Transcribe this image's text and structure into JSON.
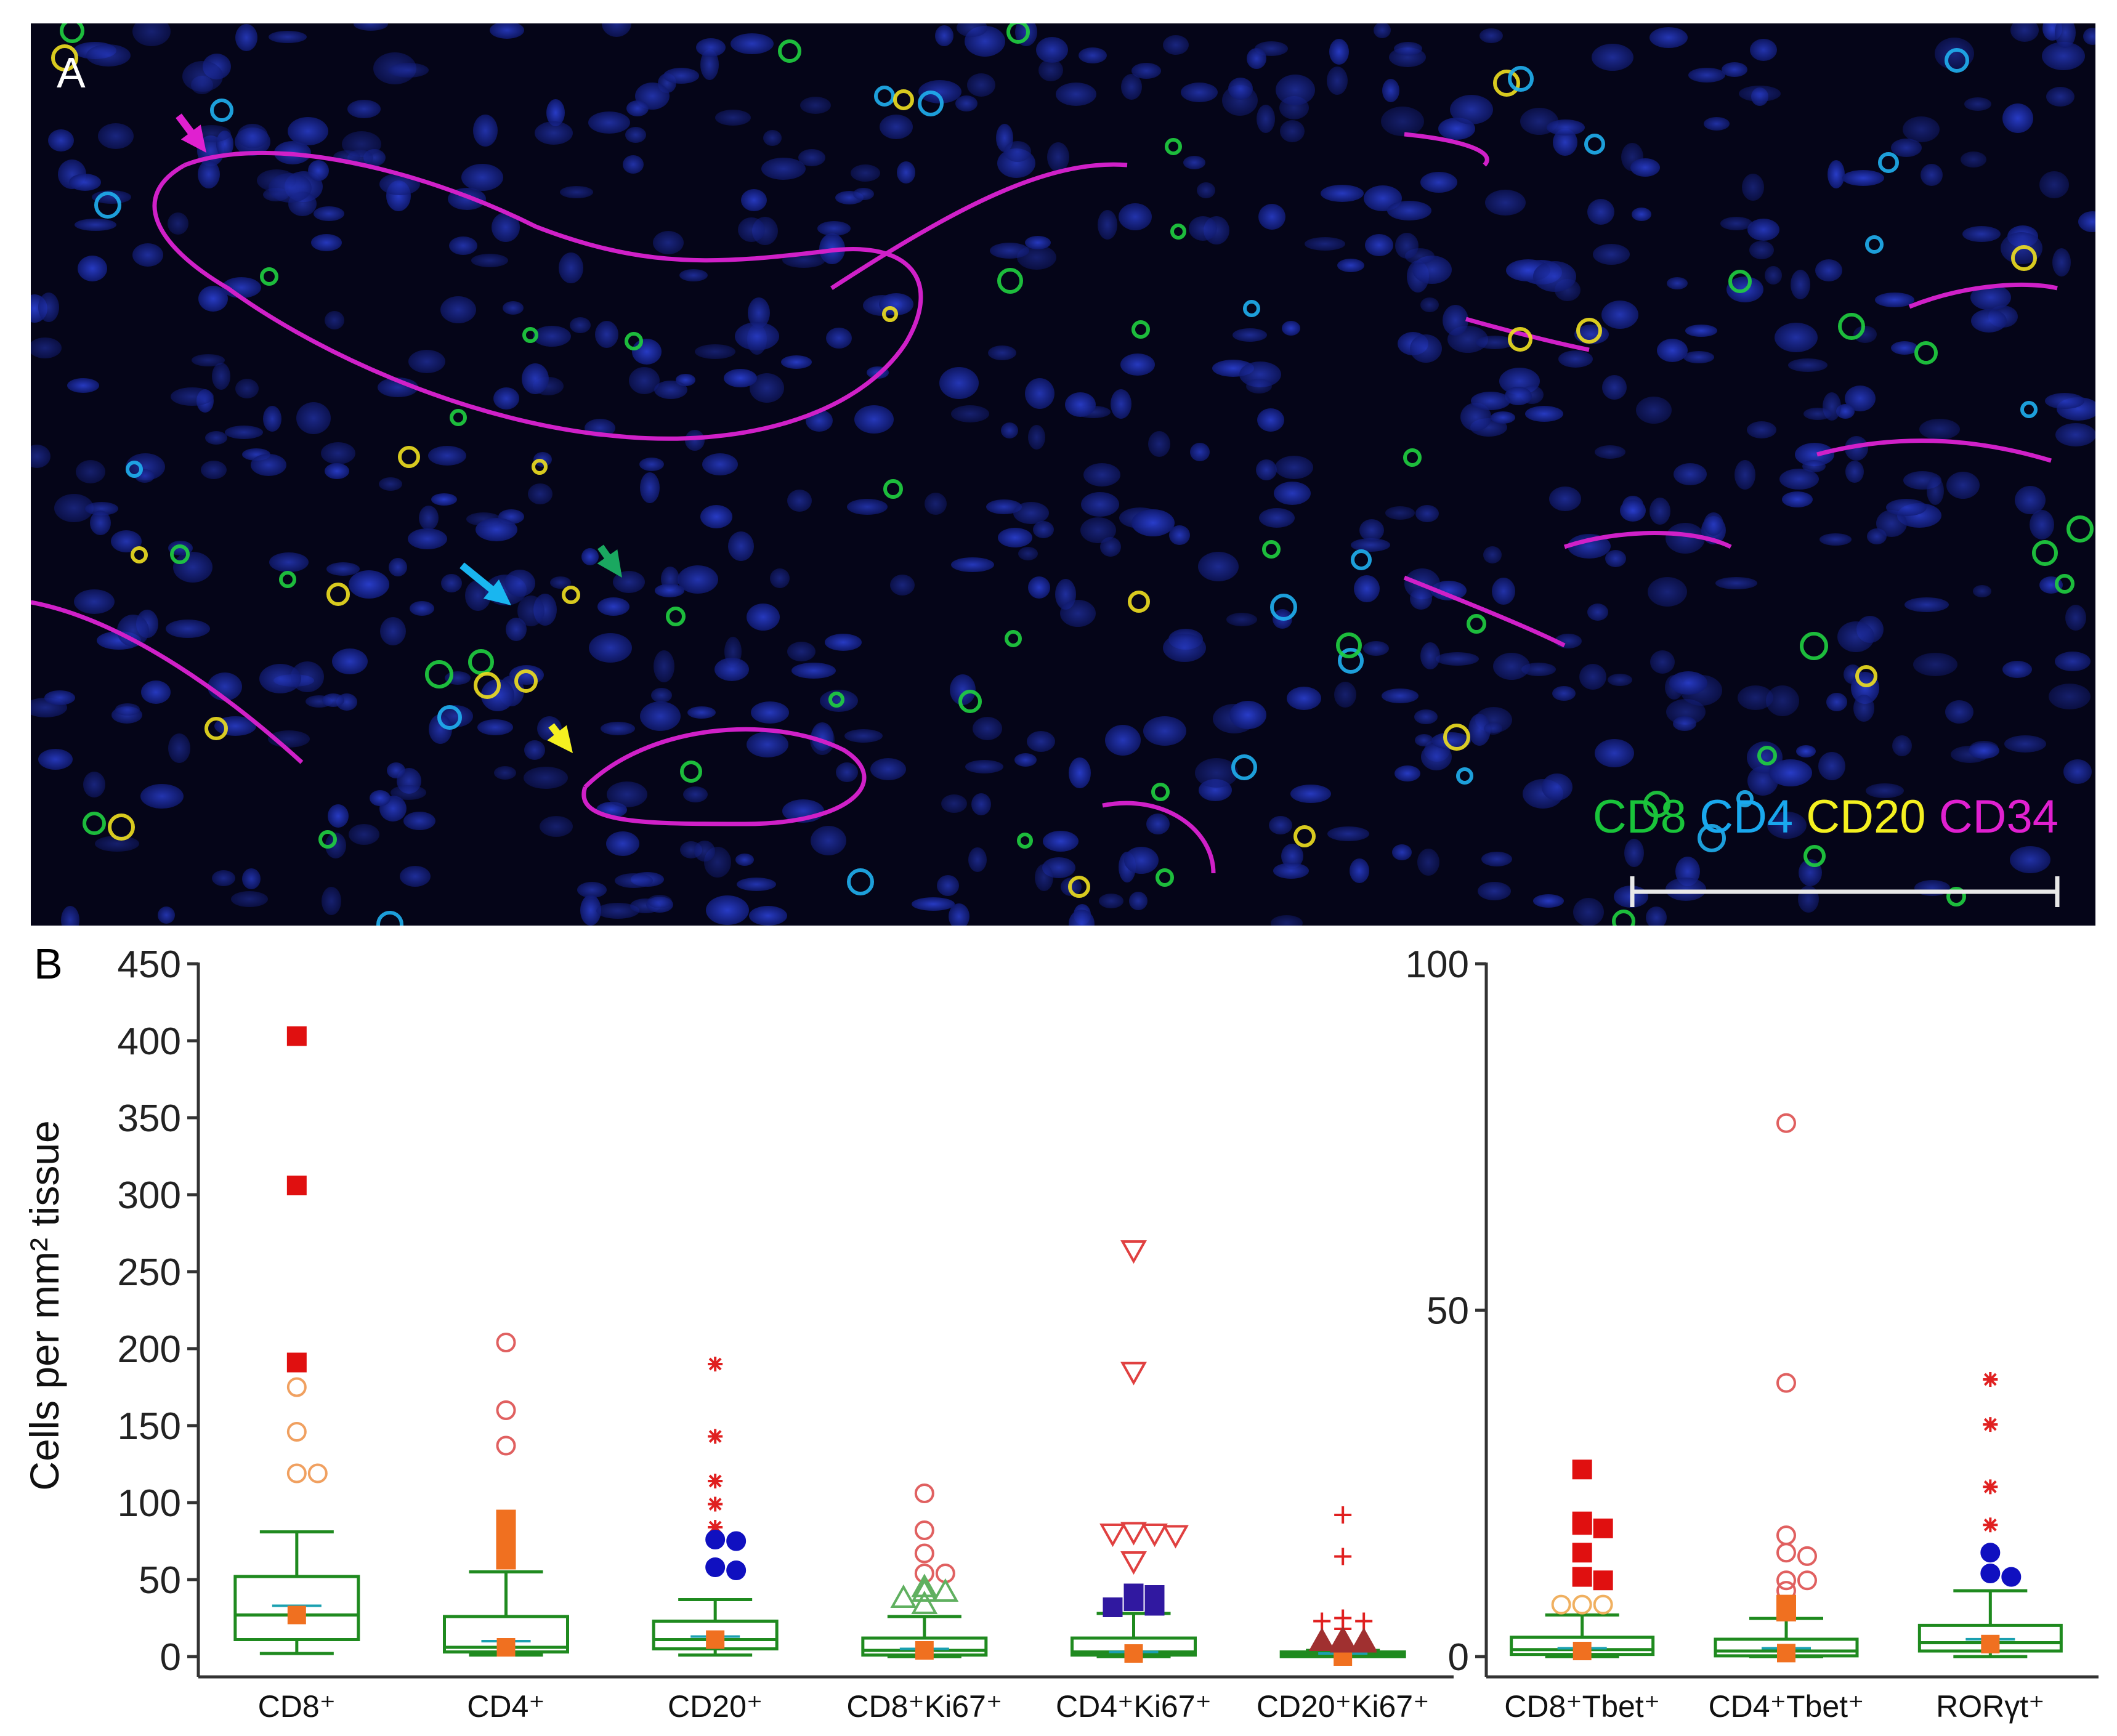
{
  "panel_a": {
    "letter": "A",
    "legend": [
      {
        "label": "CD8",
        "color": "#19c43a"
      },
      {
        "label": "CD4",
        "color": "#19a8ee"
      },
      {
        "label": "CD20",
        "color": "#f4f020"
      },
      {
        "label": "CD34",
        "color": "#e020d0"
      }
    ],
    "arrows": [
      {
        "name": "magenta-arrow",
        "color": "#e020d0"
      },
      {
        "name": "cyan-arrow",
        "color": "#19b6f0"
      },
      {
        "name": "green-arrow",
        "color": "#1aa860"
      },
      {
        "name": "yellow-arrow",
        "color": "#f4f020"
      }
    ]
  },
  "panel_b": {
    "letter": "B"
  },
  "chart_data": [
    {
      "type": "box",
      "ylabel": "Cells per mm² tissue",
      "ylim": [
        0,
        450
      ],
      "yticks": [
        0,
        50,
        100,
        150,
        200,
        250,
        300,
        350,
        400,
        450
      ],
      "categories": [
        "CD8⁺",
        "CD4⁺",
        "CD20⁺",
        "CD8⁺Ki67⁺",
        "CD4⁺Ki67⁺",
        "CD20⁺Ki67⁺"
      ],
      "box_color": "#1f8a1f",
      "boxes": [
        {
          "whisker_low": 2,
          "q1": 11,
          "median": 27,
          "q3": 52,
          "whisker_high": 81,
          "mean": 33,
          "marker_value": 27,
          "marker_color": "#f07020",
          "outliers": [
            {
              "value": 403,
              "shape": "square",
              "color": "#e01010",
              "filled": true
            },
            {
              "value": 306,
              "shape": "square",
              "color": "#e01010",
              "filled": true
            },
            {
              "value": 191,
              "shape": "square",
              "color": "#e01010",
              "filled": true
            },
            {
              "value": 175,
              "shape": "circle",
              "color": "#f0a060",
              "filled": false
            },
            {
              "value": 146,
              "shape": "circle",
              "color": "#f0a060",
              "filled": false
            },
            {
              "value": 119,
              "shape": "circle",
              "color": "#f0a060",
              "filled": false
            },
            {
              "value": 119,
              "shape": "circle",
              "color": "#f0a060",
              "filled": false
            }
          ]
        },
        {
          "whisker_low": 1,
          "q1": 3,
          "median": 6,
          "q3": 26,
          "whisker_high": 55,
          "mean": 10,
          "marker_value": 6,
          "marker_color": "#f07020",
          "outliers": [
            {
              "value": 204,
              "shape": "circle",
              "color": "#e06060",
              "filled": false
            },
            {
              "value": 160,
              "shape": "circle",
              "color": "#e06060",
              "filled": false
            },
            {
              "value": 137,
              "shape": "circle",
              "color": "#e06060",
              "filled": false
            },
            {
              "value": 89,
              "shape": "square",
              "color": "#f07020",
              "filled": true
            },
            {
              "value": 77,
              "shape": "square",
              "color": "#f07020",
              "filled": true
            },
            {
              "value": 72,
              "shape": "square",
              "color": "#f07020",
              "filled": true
            },
            {
              "value": 63,
              "shape": "square",
              "color": "#f07020",
              "filled": true
            }
          ]
        },
        {
          "whisker_low": 1,
          "q1": 5,
          "median": 11,
          "q3": 23,
          "whisker_high": 37,
          "mean": 13,
          "marker_value": 11,
          "marker_color": "#f07020",
          "outliers": [
            {
              "value": 190,
              "shape": "star",
              "color": "#e02020",
              "filled": true
            },
            {
              "value": 143,
              "shape": "star",
              "color": "#e02020",
              "filled": true
            },
            {
              "value": 114,
              "shape": "star",
              "color": "#e02020",
              "filled": true
            },
            {
              "value": 99,
              "shape": "star",
              "color": "#e02020",
              "filled": true
            },
            {
              "value": 84,
              "shape": "star",
              "color": "#e02020",
              "filled": true
            },
            {
              "value": 76,
              "shape": "circle",
              "color": "#1010c0",
              "filled": true
            },
            {
              "value": 75,
              "shape": "circle",
              "color": "#1010c0",
              "filled": true
            },
            {
              "value": 58,
              "shape": "circle",
              "color": "#1010c0",
              "filled": true
            },
            {
              "value": 56,
              "shape": "circle",
              "color": "#1010c0",
              "filled": true
            }
          ]
        },
        {
          "whisker_low": 0,
          "q1": 1,
          "median": 4,
          "q3": 12,
          "whisker_high": 26,
          "mean": 5,
          "marker_value": 4,
          "marker_color": "#f07020",
          "outliers": [
            {
              "value": 106,
              "shape": "circle",
              "color": "#e06060",
              "filled": false
            },
            {
              "value": 82,
              "shape": "circle",
              "color": "#e06060",
              "filled": false
            },
            {
              "value": 67,
              "shape": "circle",
              "color": "#e06060",
              "filled": false
            },
            {
              "value": 54,
              "shape": "circle",
              "color": "#e06060",
              "filled": false
            },
            {
              "value": 54,
              "shape": "circle",
              "color": "#e06060",
              "filled": false
            },
            {
              "value": 45,
              "shape": "triangle",
              "color": "#60b060",
              "filled": false
            },
            {
              "value": 42,
              "shape": "triangle",
              "color": "#60b060",
              "filled": false
            },
            {
              "value": 42,
              "shape": "triangle",
              "color": "#60b060",
              "filled": false
            },
            {
              "value": 38,
              "shape": "triangle",
              "color": "#60b060",
              "filled": false
            },
            {
              "value": 34,
              "shape": "triangle",
              "color": "#60b060",
              "filled": false
            }
          ]
        },
        {
          "whisker_low": 0,
          "q1": 1,
          "median": 3,
          "q3": 12,
          "whisker_high": 28,
          "mean": 3,
          "marker_value": 2,
          "marker_color": "#f07020",
          "outliers": [
            {
              "value": 264,
              "shape": "triangle-down",
              "color": "#e04040",
              "filled": false
            },
            {
              "value": 185,
              "shape": "triangle-down",
              "color": "#e04040",
              "filled": false
            },
            {
              "value": 81,
              "shape": "triangle-down",
              "color": "#e04040",
              "filled": false
            },
            {
              "value": 80,
              "shape": "triangle-down",
              "color": "#e04040",
              "filled": false
            },
            {
              "value": 80,
              "shape": "triangle-down",
              "color": "#e04040",
              "filled": false
            },
            {
              "value": 79,
              "shape": "triangle-down",
              "color": "#e04040",
              "filled": false
            },
            {
              "value": 62,
              "shape": "triangle-down",
              "color": "#e04040",
              "filled": false
            },
            {
              "value": 41,
              "shape": "square",
              "color": "#3018a0",
              "filled": true
            },
            {
              "value": 40,
              "shape": "square",
              "color": "#3018a0",
              "filled": true
            },
            {
              "value": 36,
              "shape": "square",
              "color": "#3018a0",
              "filled": true
            },
            {
              "value": 33,
              "shape": "square",
              "color": "#3018a0",
              "filled": true
            },
            {
              "value": 32,
              "shape": "square",
              "color": "#3018a0",
              "filled": true
            }
          ]
        },
        {
          "whisker_low": 0,
          "q1": 0,
          "median": 1,
          "q3": 3,
          "whisker_high": 4,
          "mean": 2,
          "marker_value": 0,
          "marker_color": "#f07020",
          "outliers": [
            {
              "value": 92,
              "shape": "plus",
              "color": "#e02020",
              "filled": true
            },
            {
              "value": 65,
              "shape": "plus",
              "color": "#e02020",
              "filled": true
            },
            {
              "value": 25,
              "shape": "plus",
              "color": "#e02020",
              "filled": true
            },
            {
              "value": 23,
              "shape": "plus",
              "color": "#e02020",
              "filled": true
            },
            {
              "value": 23,
              "shape": "plus",
              "color": "#e02020",
              "filled": true
            },
            {
              "value": 18,
              "shape": "plus",
              "color": "#e02020",
              "filled": true
            },
            {
              "value": 11,
              "shape": "triangle",
              "color": "#a03030",
              "filled": true
            },
            {
              "value": 10,
              "shape": "triangle",
              "color": "#a03030",
              "filled": true
            },
            {
              "value": 10,
              "shape": "triangle",
              "color": "#a03030",
              "filled": true
            },
            {
              "value": 9,
              "shape": "triangle",
              "color": "#a03030",
              "filled": true
            },
            {
              "value": 9,
              "shape": "triangle",
              "color": "#a03030",
              "filled": true
            }
          ]
        }
      ]
    },
    {
      "type": "box",
      "ylim": [
        0,
        100
      ],
      "yticks": [
        0,
        50,
        100
      ],
      "categories": [
        "CD8⁺Tbet⁺",
        "CD4⁺Tbet⁺",
        "RORγt⁺"
      ],
      "box_color": "#1f8a1f",
      "boxes": [
        {
          "whisker_low": 0,
          "q1": 0.3,
          "median": 1,
          "q3": 2.8,
          "whisker_high": 6,
          "mean": 1.2,
          "marker_value": 0.8,
          "marker_color": "#f07020",
          "outliers": [
            {
              "value": 27,
              "shape": "square",
              "color": "#e01010",
              "filled": true
            },
            {
              "value": 19.5,
              "shape": "square",
              "color": "#e01010",
              "filled": true
            },
            {
              "value": 19,
              "shape": "square",
              "color": "#e01010",
              "filled": true
            },
            {
              "value": 18.5,
              "shape": "square",
              "color": "#e01010",
              "filled": true
            },
            {
              "value": 15,
              "shape": "square",
              "color": "#e01010",
              "filled": true
            },
            {
              "value": 11.5,
              "shape": "square",
              "color": "#e01010",
              "filled": true
            },
            {
              "value": 11,
              "shape": "square",
              "color": "#e01010",
              "filled": true
            },
            {
              "value": 7.5,
              "shape": "circle",
              "color": "#f0b060",
              "filled": false
            },
            {
              "value": 7.5,
              "shape": "circle",
              "color": "#f0b060",
              "filled": false
            },
            {
              "value": 7.5,
              "shape": "circle",
              "color": "#f0b060",
              "filled": false
            }
          ]
        },
        {
          "whisker_low": 0,
          "q1": 0.1,
          "median": 0.8,
          "q3": 2.5,
          "whisker_high": 5.5,
          "mean": 1.2,
          "marker_value": 0.5,
          "marker_color": "#f07020",
          "outliers": [
            {
              "value": 77,
              "shape": "circle",
              "color": "#e06060",
              "filled": false
            },
            {
              "value": 39.5,
              "shape": "circle",
              "color": "#e06060",
              "filled": false
            },
            {
              "value": 17.5,
              "shape": "circle",
              "color": "#e06060",
              "filled": false
            },
            {
              "value": 15,
              "shape": "circle",
              "color": "#e06060",
              "filled": false
            },
            {
              "value": 14.5,
              "shape": "circle",
              "color": "#e06060",
              "filled": false
            },
            {
              "value": 11,
              "shape": "circle",
              "color": "#e06060",
              "filled": false
            },
            {
              "value": 11,
              "shape": "circle",
              "color": "#e06060",
              "filled": false
            },
            {
              "value": 9.5,
              "shape": "circle",
              "color": "#e06060",
              "filled": false
            },
            {
              "value": 7.5,
              "shape": "square",
              "color": "#f07020",
              "filled": true
            },
            {
              "value": 6.5,
              "shape": "square",
              "color": "#f07020",
              "filled": true
            }
          ]
        },
        {
          "whisker_low": 0,
          "q1": 0.8,
          "median": 2,
          "q3": 4.5,
          "whisker_high": 9.5,
          "mean": 2.5,
          "marker_value": 1.8,
          "marker_color": "#f07020",
          "outliers": [
            {
              "value": 40,
              "shape": "star",
              "color": "#e02020",
              "filled": true
            },
            {
              "value": 33.5,
              "shape": "star",
              "color": "#e02020",
              "filled": true
            },
            {
              "value": 24.5,
              "shape": "star",
              "color": "#e02020",
              "filled": true
            },
            {
              "value": 19,
              "shape": "star",
              "color": "#e02020",
              "filled": true
            },
            {
              "value": 15,
              "shape": "circle",
              "color": "#1010c0",
              "filled": true
            },
            {
              "value": 12,
              "shape": "circle",
              "color": "#1010c0",
              "filled": true
            },
            {
              "value": 11.5,
              "shape": "circle",
              "color": "#1010c0",
              "filled": true
            }
          ]
        }
      ]
    }
  ]
}
